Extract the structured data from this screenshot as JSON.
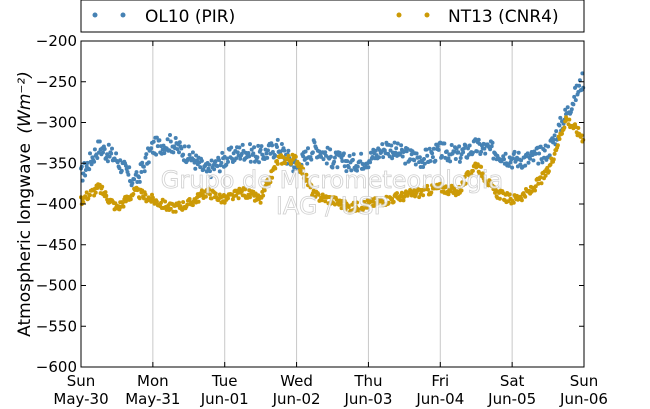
{
  "chart_data": {
    "type": "scatter",
    "ylabel": "Atmospheric longwave",
    "ylabel_unit": "(Wm⁻²)",
    "ylim": [
      -600,
      -200
    ],
    "yticks": [
      -200,
      -250,
      -300,
      -350,
      -400,
      -450,
      -500,
      -550,
      -600
    ],
    "xlim": [
      "2016-05-30T00:00",
      "2016-06-06T00:00"
    ],
    "xticks": [
      {
        "day": "Sun",
        "date": "May-30"
      },
      {
        "day": "Mon",
        "date": "May-31"
      },
      {
        "day": "Tue",
        "date": "Jun-01"
      },
      {
        "day": "Wed",
        "date": "Jun-02"
      },
      {
        "day": "Thu",
        "date": "Jun-03"
      },
      {
        "day": "Fri",
        "date": "Jun-04"
      },
      {
        "day": "Sat",
        "date": "Jun-05"
      },
      {
        "day": "Sun",
        "date": "Jun-06"
      }
    ],
    "grid": "vertical",
    "legend_position": "top",
    "watermark": [
      "Grupo de Micrometeorologia",
      "IAG / USP"
    ],
    "series": [
      {
        "name": "OL10 (PIR)",
        "color": "#4682b4",
        "x_days": [
          0.0,
          0.25,
          0.5,
          0.75,
          1.0,
          1.25,
          1.5,
          1.75,
          2.0,
          2.25,
          2.5,
          2.75,
          3.0,
          3.25,
          3.5,
          3.75,
          4.0,
          4.25,
          4.5,
          4.75,
          5.0,
          5.25,
          5.5,
          5.75,
          6.0,
          6.25,
          6.5,
          6.75,
          7.0
        ],
        "y": [
          -365,
          -330,
          -345,
          -375,
          -330,
          -325,
          -340,
          -360,
          -345,
          -335,
          -340,
          -330,
          -355,
          -330,
          -345,
          -350,
          -345,
          -330,
          -340,
          -345,
          -335,
          -340,
          -330,
          -335,
          -345,
          -345,
          -335,
          -290,
          -245
        ]
      },
      {
        "name": "NT13 (CNR4)",
        "color": "#cc9a06",
        "x_days": [
          0.0,
          0.25,
          0.5,
          0.75,
          1.0,
          1.25,
          1.5,
          1.75,
          2.0,
          2.25,
          2.5,
          2.75,
          3.0,
          3.25,
          3.5,
          3.75,
          4.0,
          4.25,
          4.5,
          4.75,
          5.0,
          5.25,
          5.5,
          5.75,
          6.0,
          6.25,
          6.5,
          6.75,
          7.0
        ],
        "y": [
          -395,
          -380,
          -405,
          -385,
          -395,
          -405,
          -400,
          -385,
          -395,
          -385,
          -395,
          -345,
          -345,
          -390,
          -395,
          -405,
          -400,
          -395,
          -390,
          -385,
          -380,
          -385,
          -350,
          -385,
          -395,
          -385,
          -360,
          -295,
          -320
        ]
      }
    ]
  }
}
